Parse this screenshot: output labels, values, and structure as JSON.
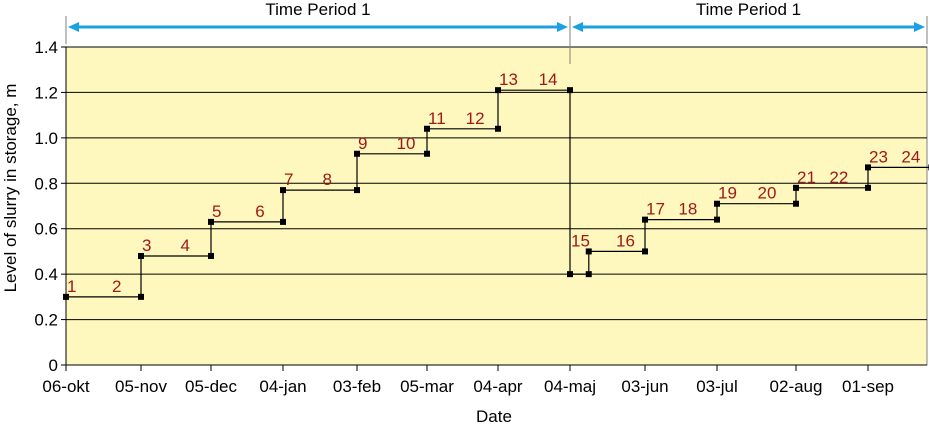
{
  "colors": {
    "plot_background": "#FFF8BE",
    "grid": "#000000",
    "line": "#000000",
    "marker": "#000000",
    "step_labels": "#A01818",
    "period_arrows": "#1BA1E2"
  },
  "periods": [
    {
      "label": "Time Period 1",
      "x_start": "06-okt",
      "x_end": "04-maj"
    },
    {
      "label": "Time Period 1",
      "x_start": "04-maj",
      "x_end": "end"
    }
  ],
  "chart_data": {
    "type": "line",
    "title": "",
    "xlabel": "Date",
    "ylabel": "Level of slurry in storage, m",
    "ylim": [
      0,
      1.4
    ],
    "yticks": [
      0,
      0.2,
      0.4,
      0.6,
      0.8,
      1.0,
      1.2,
      1.4
    ],
    "ytick_labels": [
      "0",
      "0.2",
      "0.4",
      "0.6",
      "0.8",
      "1.0",
      "1.2",
      "1.4"
    ],
    "xticks": [
      "06-okt",
      "05-nov",
      "05-dec",
      "04-jan",
      "03-feb",
      "05-mar",
      "04-apr",
      "04-maj",
      "03-jun",
      "03-jul",
      "02-aug",
      "01-sep"
    ],
    "grid": true,
    "legend": "none",
    "step_points": [
      {
        "x": 0.0,
        "y": 0.3
      },
      {
        "x": 1.0,
        "y": 0.3
      },
      {
        "x": 1.0,
        "y": 0.48
      },
      {
        "x": 2.0,
        "y": 0.48
      },
      {
        "x": 2.0,
        "y": 0.63
      },
      {
        "x": 3.0,
        "y": 0.63
      },
      {
        "x": 3.0,
        "y": 0.77
      },
      {
        "x": 4.0,
        "y": 0.77
      },
      {
        "x": 4.0,
        "y": 0.93
      },
      {
        "x": 5.0,
        "y": 0.93
      },
      {
        "x": 5.0,
        "y": 1.04
      },
      {
        "x": 6.0,
        "y": 1.04
      },
      {
        "x": 6.0,
        "y": 1.21
      },
      {
        "x": 7.0,
        "y": 1.21
      },
      {
        "x": 7.0,
        "y": 0.4
      },
      {
        "x": 7.25,
        "y": 0.4
      },
      {
        "x": 7.25,
        "y": 0.5
      },
      {
        "x": 8.0,
        "y": 0.5
      },
      {
        "x": 8.0,
        "y": 0.64
      },
      {
        "x": 9.0,
        "y": 0.64
      },
      {
        "x": 9.0,
        "y": 0.71
      },
      {
        "x": 10.0,
        "y": 0.71
      },
      {
        "x": 10.0,
        "y": 0.78
      },
      {
        "x": 11.0,
        "y": 0.78
      },
      {
        "x": 11.0,
        "y": 0.87
      },
      {
        "x": 11.88,
        "y": 0.87
      }
    ],
    "step_labels": [
      {
        "text": "1",
        "x": 0.0,
        "y": 0.3
      },
      {
        "text": "2",
        "x": 0.6,
        "y": 0.3
      },
      {
        "text": "3",
        "x": 1.0,
        "y": 0.48
      },
      {
        "text": "4",
        "x": 1.55,
        "y": 0.48
      },
      {
        "text": "5",
        "x": 2.0,
        "y": 0.63
      },
      {
        "text": "6",
        "x": 2.6,
        "y": 0.63
      },
      {
        "text": "7",
        "x": 3.0,
        "y": 0.77
      },
      {
        "text": "8",
        "x": 3.52,
        "y": 0.77
      },
      {
        "text": "9",
        "x": 4.0,
        "y": 0.93
      },
      {
        "text": "10",
        "x": 4.55,
        "y": 0.93
      },
      {
        "text": "11",
        "x": 5.0,
        "y": 1.04
      },
      {
        "text": "12",
        "x": 5.53,
        "y": 1.04
      },
      {
        "text": "13",
        "x": 6.0,
        "y": 1.21
      },
      {
        "text": "14",
        "x": 6.55,
        "y": 1.21
      },
      {
        "text": "15",
        "x": 7.0,
        "y": 0.5
      },
      {
        "text": "16",
        "x": 7.6,
        "y": 0.5
      },
      {
        "text": "17",
        "x": 8.0,
        "y": 0.64
      },
      {
        "text": "18",
        "x": 8.45,
        "y": 0.64
      },
      {
        "text": "19",
        "x": 9.0,
        "y": 0.71
      },
      {
        "text": "20",
        "x": 9.5,
        "y": 0.71
      },
      {
        "text": "21",
        "x": 10.0,
        "y": 0.78
      },
      {
        "text": "22",
        "x": 10.45,
        "y": 0.78
      },
      {
        "text": "23",
        "x": 11.0,
        "y": 0.87
      },
      {
        "text": "24",
        "x": 11.45,
        "y": 0.87
      }
    ]
  }
}
